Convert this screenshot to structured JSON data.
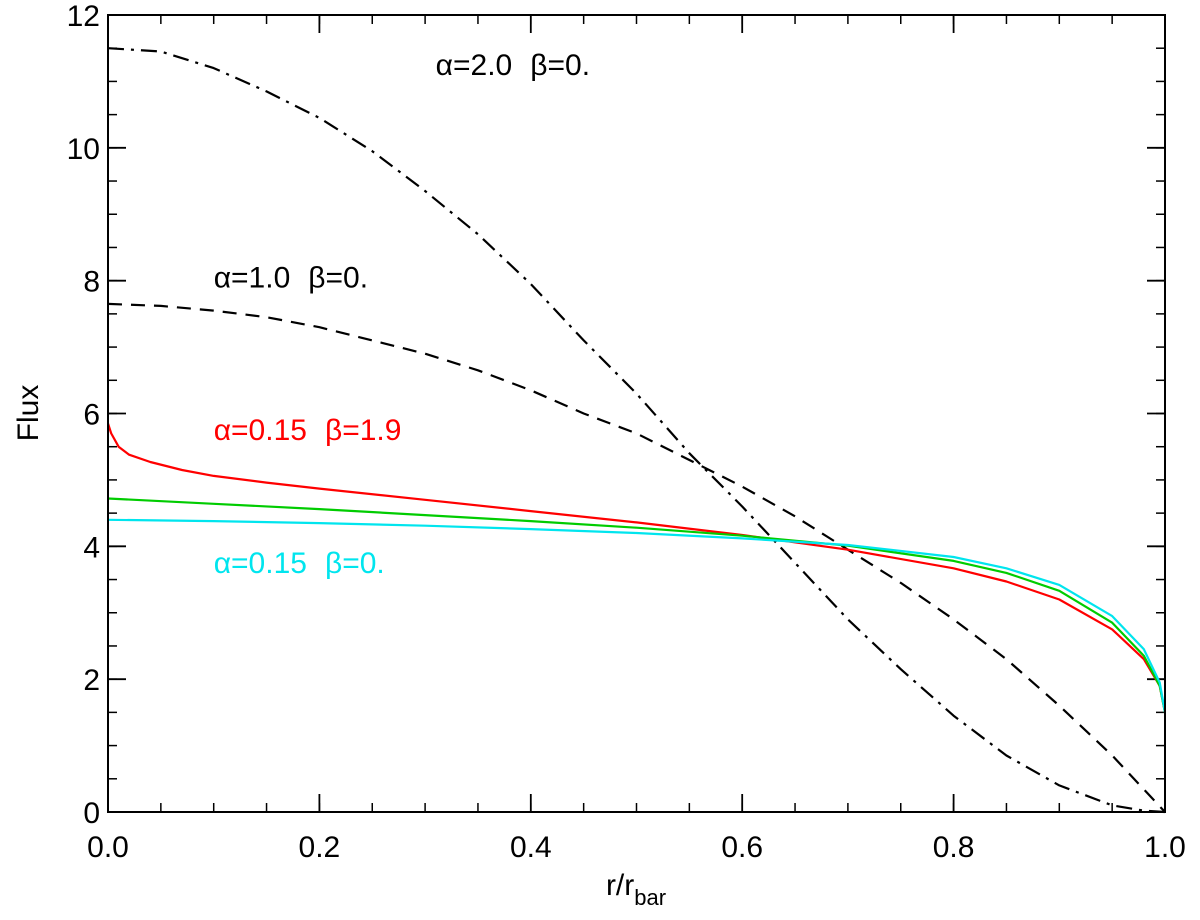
{
  "chart_data": {
    "type": "line",
    "title": "",
    "xlabel": {
      "main": "r/r",
      "sub": "bar"
    },
    "ylabel": "Flux",
    "xlim": [
      0.0,
      1.0
    ],
    "ylim": [
      0,
      12
    ],
    "xticks": [
      0.0,
      0.2,
      0.4,
      0.6,
      0.8,
      1.0
    ],
    "xtick_labels": [
      "0.0",
      "0.2",
      "0.4",
      "0.6",
      "0.8",
      "1.0"
    ],
    "yticks": [
      0,
      2,
      4,
      6,
      8,
      10,
      12
    ],
    "ytick_labels": [
      "0",
      "2",
      "4",
      "6",
      "8",
      "10",
      "12"
    ],
    "x_minor_step": 0.05,
    "y_minor_step": 0.5,
    "grid": false,
    "series": [
      {
        "name": "alpha=2.0 beta=0.",
        "color": "#000000",
        "dash": "dashdot",
        "x": [
          0.0,
          0.05,
          0.1,
          0.15,
          0.2,
          0.25,
          0.3,
          0.35,
          0.4,
          0.45,
          0.5,
          0.55,
          0.6,
          0.65,
          0.7,
          0.75,
          0.8,
          0.85,
          0.9,
          0.95,
          0.98,
          1.0
        ],
        "y": [
          11.5,
          11.45,
          11.2,
          10.85,
          10.45,
          9.95,
          9.35,
          8.7,
          7.95,
          7.1,
          6.3,
          5.4,
          4.6,
          3.75,
          2.9,
          2.15,
          1.45,
          0.85,
          0.4,
          0.1,
          0.02,
          0.0
        ]
      },
      {
        "name": "alpha=1.0 beta=0.",
        "color": "#000000",
        "dash": "dashed",
        "x": [
          0.0,
          0.05,
          0.1,
          0.15,
          0.2,
          0.25,
          0.3,
          0.35,
          0.4,
          0.45,
          0.5,
          0.55,
          0.6,
          0.65,
          0.7,
          0.75,
          0.8,
          0.85,
          0.9,
          0.95,
          1.0
        ],
        "y": [
          7.65,
          7.62,
          7.55,
          7.45,
          7.3,
          7.1,
          6.9,
          6.65,
          6.35,
          6.0,
          5.7,
          5.3,
          4.9,
          4.45,
          3.95,
          3.45,
          2.9,
          2.3,
          1.6,
          0.85,
          0.0
        ]
      },
      {
        "name": "alpha=0.15 beta=1.9",
        "color": "#ff0000",
        "dash": "solid",
        "x": [
          0.0,
          0.003,
          0.01,
          0.02,
          0.04,
          0.07,
          0.1,
          0.15,
          0.2,
          0.3,
          0.4,
          0.5,
          0.6,
          0.7,
          0.8,
          0.85,
          0.9,
          0.95,
          0.98,
          0.995,
          1.0
        ],
        "y": [
          5.85,
          5.7,
          5.5,
          5.38,
          5.27,
          5.15,
          5.06,
          4.96,
          4.87,
          4.7,
          4.53,
          4.36,
          4.17,
          3.95,
          3.67,
          3.47,
          3.2,
          2.75,
          2.3,
          1.9,
          1.5
        ]
      },
      {
        "name": "green",
        "color": "#00cc00",
        "dash": "solid",
        "x": [
          0.0,
          0.1,
          0.2,
          0.3,
          0.4,
          0.5,
          0.6,
          0.7,
          0.8,
          0.85,
          0.9,
          0.95,
          0.98,
          0.995,
          1.0
        ],
        "y": [
          4.72,
          4.64,
          4.56,
          4.47,
          4.38,
          4.28,
          4.16,
          4.01,
          3.78,
          3.6,
          3.33,
          2.85,
          2.35,
          1.9,
          1.5
        ]
      },
      {
        "name": "alpha=0.15 beta=0.",
        "color": "#00e5ee",
        "dash": "solid",
        "x": [
          0.0,
          0.1,
          0.2,
          0.3,
          0.4,
          0.5,
          0.6,
          0.7,
          0.8,
          0.85,
          0.9,
          0.95,
          0.98,
          0.995,
          1.0
        ],
        "y": [
          4.4,
          4.38,
          4.35,
          4.31,
          4.26,
          4.2,
          4.12,
          4.02,
          3.84,
          3.67,
          3.42,
          2.95,
          2.45,
          1.95,
          1.5
        ]
      }
    ],
    "annotations": [
      {
        "text_alpha": "α=2.0",
        "text_beta": "β=0.",
        "color": "#000000",
        "x": 0.31,
        "y": 11.1
      },
      {
        "text_alpha": "α=1.0",
        "text_beta": "β=0.",
        "color": "#000000",
        "x": 0.1,
        "y": 7.9
      },
      {
        "text_alpha": "α=0.15",
        "text_beta": "β=1.9",
        "color": "#ff0000",
        "x": 0.1,
        "y": 5.6
      },
      {
        "text_alpha": "α=0.15",
        "text_beta": "β=0.",
        "color": "#00e5ee",
        "x": 0.1,
        "y": 3.6
      }
    ]
  }
}
